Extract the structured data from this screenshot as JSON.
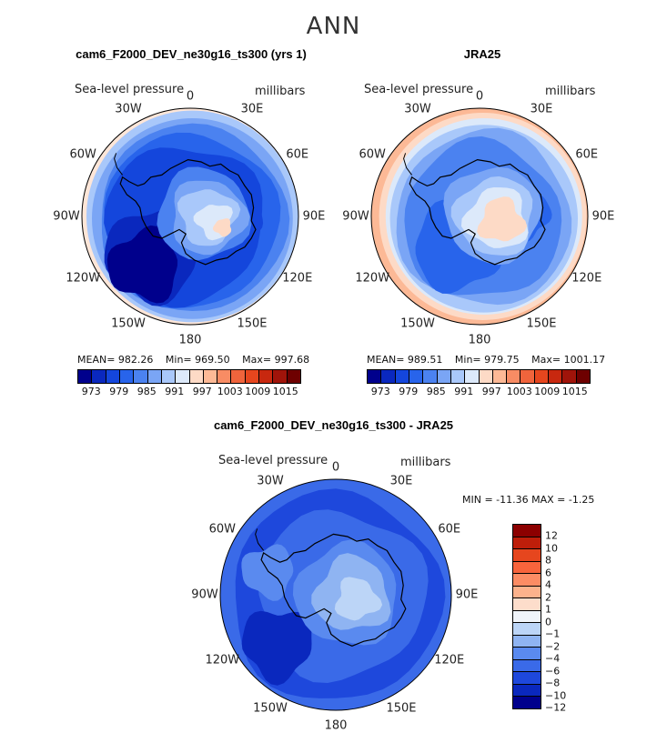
{
  "title": "ANN",
  "panels": [
    {
      "title": "cam6_F2000_DEV_ne30g16_ts300 (yrs 1)",
      "variable": "Sea-level pressure",
      "units": "millibars",
      "stats": {
        "mean": "MEAN= 982.26",
        "min": "Min= 969.50",
        "max": "Max= 997.68"
      },
      "colorbar_ticks": [
        "973",
        "979",
        "985",
        "991",
        "997",
        "1003",
        "1009",
        "1015"
      ]
    },
    {
      "title": "JRA25",
      "variable": "Sea-level pressure",
      "units": "millibars",
      "stats": {
        "mean": "MEAN= 989.51",
        "min": "Min= 979.75",
        "max": "Max= 1001.17"
      },
      "colorbar_ticks": [
        "973",
        "979",
        "985",
        "991",
        "997",
        "1003",
        "1009",
        "1015"
      ]
    },
    {
      "title": "cam6_F2000_DEV_ne30g16_ts300 - JRA25",
      "variable": "Sea-level pressure",
      "units": "millibars",
      "stats": {
        "minmax": "MIN = -11.36 MAX =  -1.25"
      },
      "colorbar_ticks": [
        "12",
        "10",
        "8",
        "6",
        "4",
        "2",
        "1",
        "0",
        "−1",
        "−2",
        "−4",
        "−6",
        "−8",
        "−10",
        "−12"
      ]
    }
  ],
  "longitude_labels": [
    "0",
    "30E",
    "60E",
    "90E",
    "120E",
    "150E",
    "180",
    "150W",
    "120W",
    "90W",
    "60W",
    "30W"
  ],
  "colorbar_abs_colors": [
    "#00008c",
    "#0a28be",
    "#1446dc",
    "#2864eb",
    "#4b82f0",
    "#7aa5f5",
    "#a9c8fa",
    "#dce9fa",
    "#fddac6",
    "#fcb996",
    "#f88c64",
    "#f0643c",
    "#e6461e",
    "#c8280f",
    "#a0140a",
    "#6e0000"
  ],
  "colorbar_diff_colors": [
    "#8c0000",
    "#be1e0a",
    "#e6461e",
    "#f8643c",
    "#fc8c64",
    "#fcb28c",
    "#fdddcb",
    "#f0f4fa",
    "#bcd5f7",
    "#8fb4f2",
    "#5a8aef",
    "#3a6ae8",
    "#1e48dc",
    "#0a28be",
    "#00008c"
  ]
}
